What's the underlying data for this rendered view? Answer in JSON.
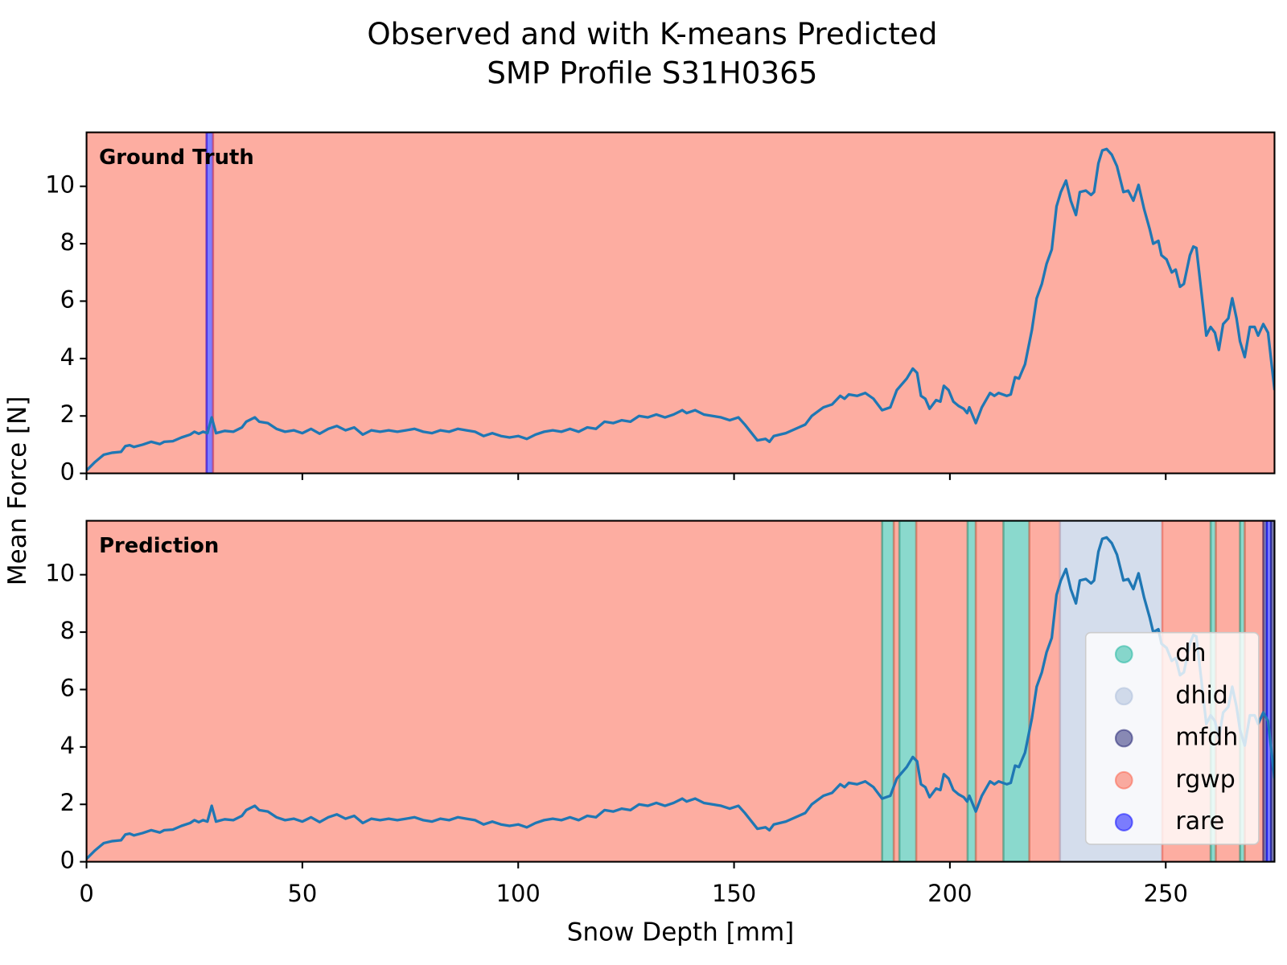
{
  "chart_data": {
    "type": "line",
    "title": "Observed and with K-means Predicted",
    "subtitle": "SMP Profile S31H0365",
    "xlabel": "Snow Depth [mm]",
    "ylabel": "Mean Force [N]",
    "xlim": [
      0,
      275.2
    ],
    "xticks": [
      0,
      50,
      100,
      150,
      200,
      250
    ],
    "ylim": [
      0,
      11.88
    ],
    "yticks": [
      0,
      2,
      4,
      6,
      8,
      10
    ],
    "line_color": "#1f77b4",
    "alpha": 0.5,
    "legend": "lower right",
    "classes": [
      {
        "name": "dh",
        "color": "#15b39b"
      },
      {
        "name": "dhid",
        "color": "#a9bcd9"
      },
      {
        "name": "mfdh",
        "color": "#1a1a6e"
      },
      {
        "name": "rgwp",
        "color": "#fb5b43"
      },
      {
        "name": "rare",
        "color": "#0000ff"
      }
    ],
    "x": [
      0,
      2,
      4,
      6,
      8,
      9,
      10,
      11,
      13,
      15,
      17,
      18,
      20,
      22,
      24,
      25,
      26,
      27,
      28,
      29,
      30,
      32,
      34,
      36,
      37,
      39,
      40,
      42,
      44,
      46,
      48,
      50,
      52,
      54,
      56,
      58,
      60,
      62,
      64,
      66,
      68,
      70,
      72,
      74,
      76,
      78,
      80,
      82,
      84,
      86,
      88,
      90,
      92,
      94,
      96,
      98,
      100,
      102,
      104,
      106,
      108,
      110,
      112,
      114,
      116,
      118,
      120,
      122,
      124,
      126,
      128,
      130,
      132,
      134,
      136,
      138,
      139,
      141,
      143,
      145,
      147,
      149,
      151,
      152.5,
      155.4,
      157.3,
      158.2,
      159.2,
      162,
      165,
      166.5,
      168,
      170.7,
      172.7,
      174.6,
      175.6,
      176.6,
      178.5,
      180.4,
      182.3,
      184.3,
      186.2,
      187.7,
      190,
      191.4,
      192.4,
      193.3,
      194.3,
      195.3,
      196.8,
      197.8,
      198.6,
      199.7,
      200.8,
      202,
      203.2,
      204,
      204.5,
      206,
      207.4,
      209.3,
      210.3,
      211.3,
      213.2,
      214.1,
      215.1,
      216,
      217.4,
      219,
      220.1,
      221.3,
      222.4,
      223.6,
      224.7,
      225.7,
      226.9,
      228,
      229.2,
      230.1,
      231.5,
      232.7,
      233.4,
      234.4,
      235.3,
      236.3,
      237.5,
      238.7,
      240.2,
      241.3,
      242.5,
      243.7,
      245,
      246.3,
      247.1,
      248.3,
      249,
      250.2,
      251.4,
      252.3,
      253.3,
      254.2,
      255.6,
      256.4,
      257.1,
      258.5,
      259.4,
      260.4,
      261.4,
      262.3,
      263.3,
      264.5,
      265.4,
      266.4,
      267.2,
      268.3,
      269.5,
      270.6,
      271.4,
      272.6,
      273.7,
      275.2
    ],
    "values": [
      0.1,
      0.4,
      0.65,
      0.72,
      0.75,
      0.95,
      0.98,
      0.92,
      1.0,
      1.1,
      1.02,
      1.1,
      1.12,
      1.25,
      1.35,
      1.45,
      1.38,
      1.45,
      1.4,
      1.95,
      1.4,
      1.48,
      1.45,
      1.6,
      1.8,
      1.95,
      1.8,
      1.75,
      1.55,
      1.45,
      1.5,
      1.4,
      1.55,
      1.38,
      1.55,
      1.65,
      1.5,
      1.6,
      1.35,
      1.5,
      1.45,
      1.5,
      1.45,
      1.5,
      1.55,
      1.45,
      1.4,
      1.5,
      1.45,
      1.55,
      1.5,
      1.45,
      1.3,
      1.4,
      1.3,
      1.25,
      1.3,
      1.2,
      1.35,
      1.45,
      1.5,
      1.45,
      1.55,
      1.45,
      1.6,
      1.55,
      1.8,
      1.75,
      1.85,
      1.8,
      2.0,
      1.95,
      2.05,
      1.95,
      2.05,
      2.2,
      2.1,
      2.2,
      2.05,
      2.0,
      1.95,
      1.85,
      1.95,
      1.7,
      1.15,
      1.2,
      1.1,
      1.3,
      1.4,
      1.6,
      1.7,
      2.0,
      2.3,
      2.4,
      2.7,
      2.6,
      2.75,
      2.7,
      2.8,
      2.6,
      2.2,
      2.3,
      2.9,
      3.3,
      3.65,
      3.5,
      2.7,
      2.6,
      2.25,
      2.55,
      2.5,
      3.05,
      2.9,
      2.5,
      2.35,
      2.25,
      2.1,
      2.3,
      1.75,
      2.3,
      2.8,
      2.7,
      2.8,
      2.7,
      2.75,
      3.35,
      3.3,
      3.8,
      5.0,
      6.1,
      6.6,
      7.3,
      7.8,
      9.3,
      9.8,
      10.2,
      9.5,
      9.0,
      9.8,
      9.85,
      9.7,
      9.8,
      10.8,
      11.25,
      11.3,
      11.1,
      10.7,
      9.8,
      9.85,
      9.5,
      10.05,
      9.2,
      8.5,
      8.0,
      8.1,
      7.6,
      7.45,
      7.0,
      7.1,
      6.5,
      6.6,
      7.6,
      7.9,
      7.85,
      6.0,
      4.8,
      5.1,
      4.9,
      4.3,
      5.2,
      5.4,
      6.1,
      5.4,
      4.6,
      4.05,
      5.1,
      5.1,
      4.8,
      5.2,
      4.9,
      2.9
    ],
    "panels": [
      {
        "label": "Ground Truth",
        "spans": [
          {
            "class": 3,
            "from": 0,
            "to": 27.8
          },
          {
            "class": 4,
            "from": 27.8,
            "to": 29.3
          },
          {
            "class": 3,
            "from": 29.3,
            "to": 275.2
          }
        ]
      },
      {
        "label": "Prediction",
        "spans": [
          {
            "class": 3,
            "from": 0,
            "to": 184.3
          },
          {
            "class": 0,
            "from": 184.3,
            "to": 187
          },
          {
            "class": 3,
            "from": 187,
            "to": 188.3
          },
          {
            "class": 0,
            "from": 188.3,
            "to": 192.2
          },
          {
            "class": 3,
            "from": 192.2,
            "to": 204.1
          },
          {
            "class": 0,
            "from": 204.1,
            "to": 206
          },
          {
            "class": 3,
            "from": 206,
            "to": 212.4
          },
          {
            "class": 0,
            "from": 212.4,
            "to": 218.4
          },
          {
            "class": 3,
            "from": 218.4,
            "to": 225.5
          },
          {
            "class": 1,
            "from": 225.5,
            "to": 249.2
          },
          {
            "class": 3,
            "from": 249.2,
            "to": 260.4
          },
          {
            "class": 0,
            "from": 260.4,
            "to": 261.6
          },
          {
            "class": 3,
            "from": 261.6,
            "to": 267.2
          },
          {
            "class": 0,
            "from": 267.2,
            "to": 268.3
          },
          {
            "class": 3,
            "from": 268.3,
            "to": 272.6
          },
          {
            "class": 2,
            "from": 272.6,
            "to": 273.4
          },
          {
            "class": 4,
            "from": 273.4,
            "to": 274.4
          },
          {
            "class": 2,
            "from": 274.4,
            "to": 275.2
          }
        ]
      }
    ]
  }
}
